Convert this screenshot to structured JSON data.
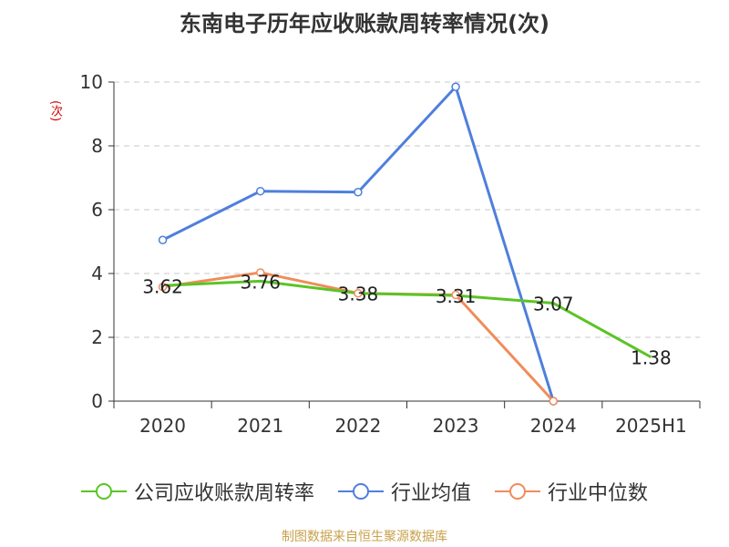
{
  "title": "东南电子历年应收账款周转率情况(次)",
  "ylabel": "(次)",
  "source": "制图数据来自恒生聚源数据库",
  "chart_data": {
    "type": "line",
    "categories": [
      "2020",
      "2021",
      "2022",
      "2023",
      "2024",
      "2025H1"
    ],
    "ylim": [
      0,
      10
    ],
    "yticks": [
      0,
      2,
      4,
      6,
      8,
      10
    ],
    "grid": true,
    "legend_position": "bottom",
    "series": [
      {
        "name": "公司应收账款周转率",
        "color": "#5bc425",
        "values": [
          3.62,
          3.76,
          3.38,
          3.31,
          3.07,
          1.38
        ],
        "labels": [
          "3.62",
          "3.76",
          "3.38",
          "3.31",
          "3.07",
          "1.38"
        ]
      },
      {
        "name": "行业均值",
        "color": "#4f7fdc",
        "values": [
          5.05,
          6.58,
          6.55,
          9.85,
          0.0,
          null
        ]
      },
      {
        "name": "行业中位数",
        "color": "#f08c5a",
        "values": [
          3.58,
          4.03,
          3.38,
          3.33,
          0.0,
          null
        ]
      }
    ]
  }
}
